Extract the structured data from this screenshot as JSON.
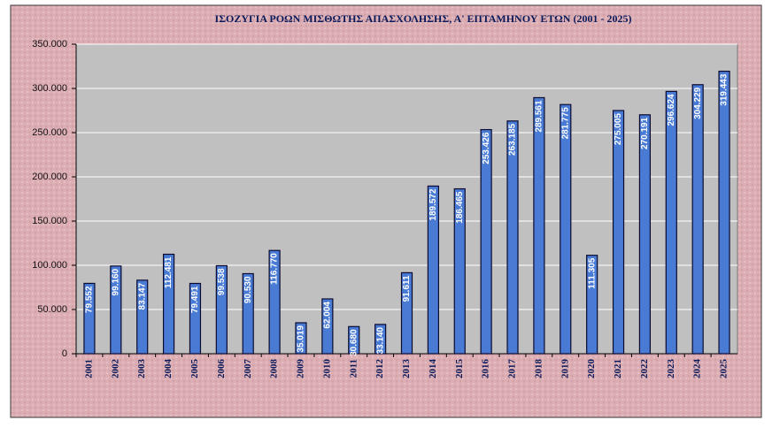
{
  "chart_data": {
    "type": "bar",
    "title": "ΙΣΟΖΥΓΙΑ ΡΟΩΝ ΜΙΣΘΩΤΗΣ ΑΠΑΣΧΟΛΗΣΗΣ, Α' ΕΠΤΑΜΗΝΟΥ  ΕΤΩΝ  (2001 - 2025)",
    "categories": [
      "2001",
      "2002",
      "2003",
      "2004",
      "2005",
      "2006",
      "2007",
      "2008",
      "2009",
      "2010",
      "2011",
      "2012",
      "2013",
      "2014",
      "2015",
      "2016",
      "2017",
      "2018",
      "2019",
      "2020",
      "2021",
      "2022",
      "2023",
      "2024",
      "2025"
    ],
    "values": [
      79552,
      99160,
      83147,
      112481,
      79491,
      99538,
      90530,
      116770,
      35019,
      62004,
      30680,
      33140,
      91611,
      189572,
      186465,
      253426,
      263185,
      289561,
      281775,
      111305,
      275005,
      270191,
      296624,
      304229,
      319443
    ],
    "value_labels": [
      "79.552",
      "99.160",
      "83.147",
      "112.481",
      "79.491",
      "99.538",
      "90.530",
      "116.770",
      "35.019",
      "62.004",
      "30.680",
      "33.140",
      "91.611",
      "189.572",
      "186.465",
      "253.426",
      "263.185",
      "289.561",
      "281.775",
      "111.305",
      "275.005",
      "270.191",
      "296.624",
      "304.229",
      "319.443"
    ],
    "color": "#4a7bd4",
    "ylim": [
      0,
      350000
    ],
    "yticks": [
      0,
      {
        "value": 50000,
        "label": "50.000"
      },
      {
        "value": 100000,
        "label": "100.000"
      },
      {
        "value": 150000,
        "label": "150.000"
      },
      {
        "value": 200000,
        "label": "200.000"
      },
      {
        "value": 250000,
        "label": "250.000"
      },
      {
        "value": 300000,
        "label": "300.000"
      },
      {
        "value": 350000,
        "label": "350.000"
      }
    ],
    "grid": true
  }
}
